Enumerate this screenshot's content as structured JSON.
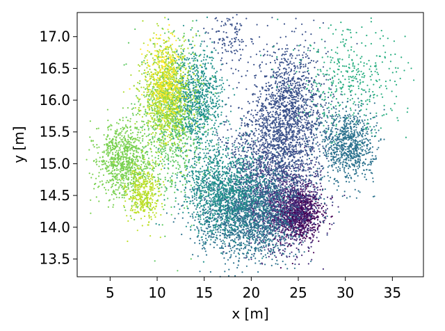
{
  "chart_data": {
    "type": "scatter",
    "xlabel": "x [m]",
    "ylabel": "y [m]",
    "xlim": [
      1.5,
      38.3
    ],
    "ylim": [
      13.22,
      17.38
    ],
    "xticks": [
      5,
      10,
      15,
      20,
      25,
      30,
      35
    ],
    "yticks": [
      13.5,
      14.0,
      14.5,
      15.0,
      15.5,
      16.0,
      16.5,
      17.0
    ],
    "xtick_labels": [
      "5",
      "10",
      "15",
      "20",
      "25",
      "30",
      "35"
    ],
    "ytick_labels": [
      "13.5",
      "14.0",
      "14.5",
      "15.0",
      "15.5",
      "16.0",
      "16.5",
      "17.0"
    ],
    "grid": false,
    "legend": "none",
    "colormap": "viridis",
    "clusters": [
      {
        "center": [
          25.0,
          14.2
        ],
        "spread": [
          1.2,
          0.2
        ],
        "count": 900,
        "color": "#440154"
      },
      {
        "center": [
          23.5,
          14.35
        ],
        "spread": [
          2.0,
          0.35
        ],
        "count": 1000,
        "color": "#472d7b"
      },
      {
        "center": [
          24.0,
          15.8
        ],
        "spread": [
          2.0,
          0.5
        ],
        "count": 1400,
        "color": "#3b528b"
      },
      {
        "center": [
          22.0,
          15.0
        ],
        "spread": [
          2.6,
          0.45
        ],
        "count": 1100,
        "color": "#3b528b"
      },
      {
        "center": [
          30.3,
          15.3
        ],
        "spread": [
          1.4,
          0.3
        ],
        "count": 800,
        "color": "#2c728e"
      },
      {
        "center": [
          19.5,
          14.2
        ],
        "spread": [
          2.6,
          0.35
        ],
        "count": 1800,
        "color": "#2c728e"
      },
      {
        "center": [
          17.0,
          14.6
        ],
        "spread": [
          2.2,
          0.35
        ],
        "count": 1000,
        "color": "#21918c"
      },
      {
        "center": [
          30.5,
          16.3
        ],
        "spread": [
          3.0,
          0.4
        ],
        "count": 380,
        "color": "#28ae80"
      },
      {
        "center": [
          14.2,
          16.0
        ],
        "spread": [
          1.4,
          0.4
        ],
        "count": 900,
        "color": "#21918c"
      },
      {
        "center": [
          11.5,
          15.7
        ],
        "spread": [
          1.6,
          0.6
        ],
        "count": 800,
        "color": "#5ec962"
      },
      {
        "center": [
          11.0,
          16.1
        ],
        "spread": [
          1.3,
          0.4
        ],
        "count": 900,
        "color": "#addc30"
      },
      {
        "center": [
          6.5,
          15.05
        ],
        "spread": [
          1.4,
          0.3
        ],
        "count": 900,
        "color": "#7ad151"
      },
      {
        "center": [
          8.5,
          14.5
        ],
        "spread": [
          0.9,
          0.25
        ],
        "count": 350,
        "color": "#bddf26"
      },
      {
        "center": [
          10.8,
          16.3
        ],
        "spread": [
          1.0,
          0.35
        ],
        "count": 300,
        "color": "#fde725"
      },
      {
        "center": [
          18.0,
          16.9
        ],
        "spread": [
          1.2,
          0.22
        ],
        "count": 120,
        "color": "#3b528b"
      }
    ]
  }
}
